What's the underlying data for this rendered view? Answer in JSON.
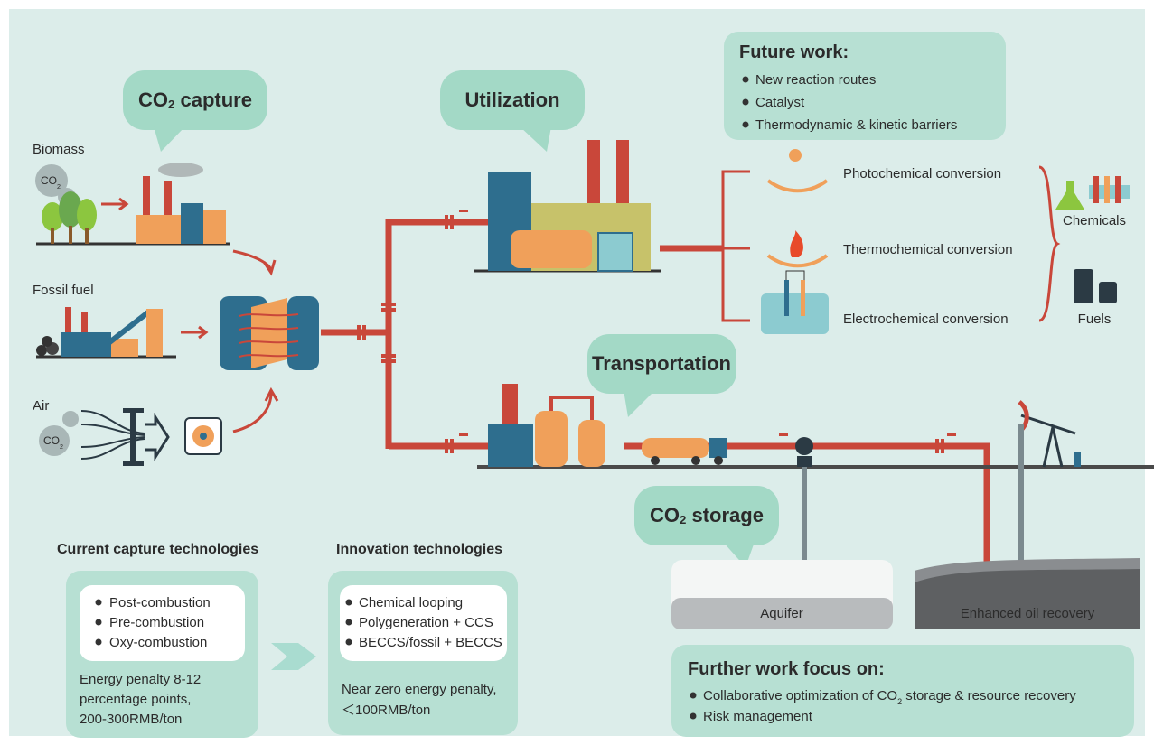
{
  "stages": {
    "capture": {
      "prefix": "CO",
      "sub": "2",
      "suffix": " capture"
    },
    "utilization": "Utilization",
    "transportation": "Transportation",
    "storage": {
      "prefix": "CO",
      "sub": "2",
      "suffix": " storage"
    }
  },
  "sources": [
    "Biomass",
    "Fossil fuel",
    "Air"
  ],
  "co2_badge": {
    "prefix": "CO",
    "sub": "2"
  },
  "future_work": {
    "title": "Future work:",
    "items": [
      "New reaction routes",
      "Catalyst",
      "Thermodynamic & kinetic barriers"
    ]
  },
  "conversions": [
    "Photochemical conversion",
    "Thermochemical conversion",
    "Electrochemical conversion"
  ],
  "products": [
    "Chemicals",
    "Fuels"
  ],
  "current": {
    "title": "Current capture technologies",
    "items": [
      "Post-combustion",
      "Pre-combustion",
      "Oxy-combustion"
    ],
    "notes": [
      "Energy penalty 8-12",
      "percentage points,",
      "200-300RMB/ton"
    ]
  },
  "innovation": {
    "title": "Innovation technologies",
    "items": [
      "Chemical looping",
      "Polygeneration + CCS",
      "BECCS/fossil + BECCS"
    ],
    "notes": [
      "Near zero energy penalty,",
      "＜100RMB/ton"
    ]
  },
  "storage_sites": [
    "Aquifer",
    "Enhanced oil recovery"
  ],
  "further": {
    "title": "Further work focus on:",
    "items": [
      {
        "prefix": "Collaborative optimization of CO",
        "sub": "2",
        "suffix": " storage & resource recovery"
      },
      "Risk management"
    ]
  }
}
